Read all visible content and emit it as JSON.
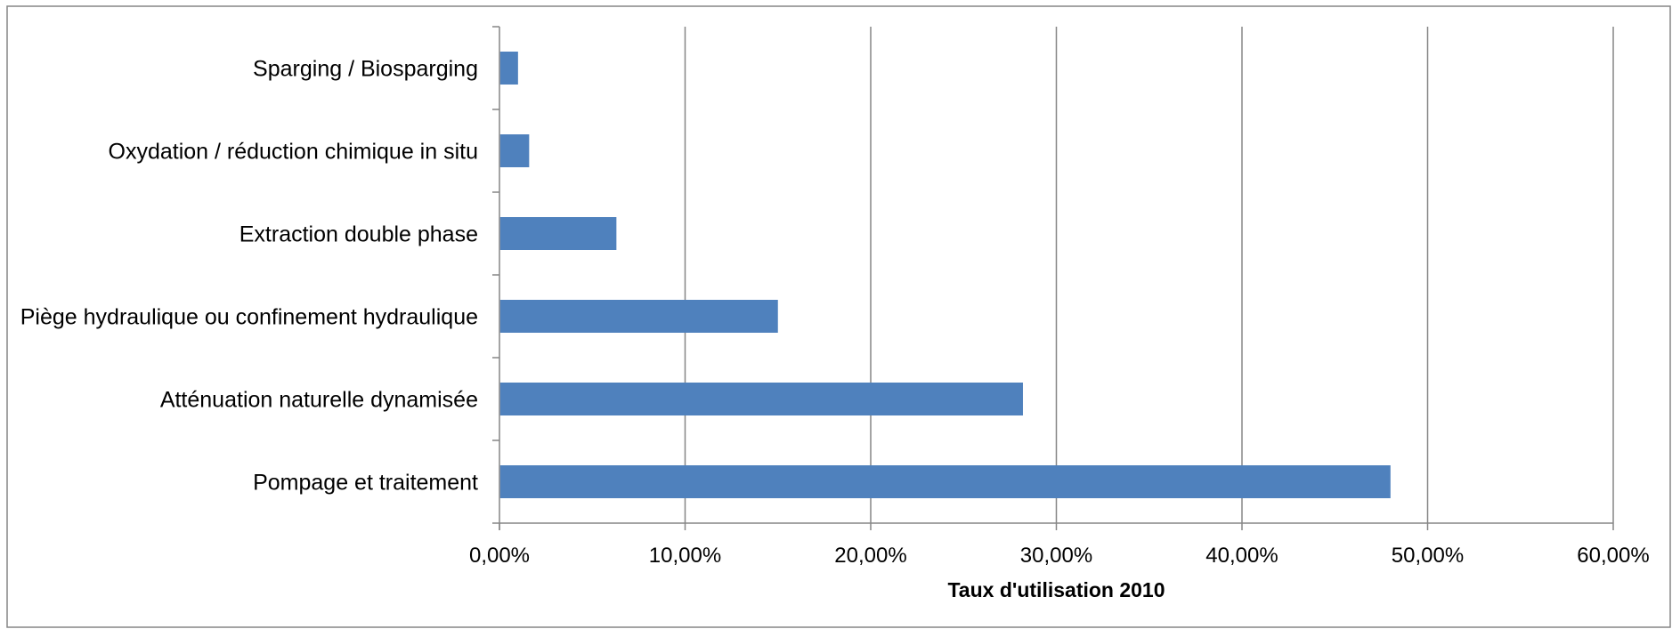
{
  "chart_data": {
    "type": "bar",
    "orientation": "horizontal",
    "categories": [
      "Sparging / Biosparging",
      "Oxydation / réduction chimique in situ",
      "Extraction double phase",
      "Piège hydraulique ou confinement hydraulique",
      "Atténuation naturelle dynamisée",
      "Pompage et traitement"
    ],
    "values": [
      0.01,
      0.016,
      0.063,
      0.15,
      0.282,
      0.48
    ],
    "xlabel": "Taux d'utilisation 2010",
    "ylabel": "",
    "xlim": [
      0,
      0.6
    ],
    "x_ticks": [
      0,
      0.1,
      0.2,
      0.3,
      0.4,
      0.5,
      0.6
    ],
    "x_tick_labels": [
      "0,00%",
      "10,00%",
      "20,00%",
      "30,00%",
      "40,00%",
      "50,00%",
      "60,00%"
    ],
    "grid": "vertical major gridlines",
    "legend": "none",
    "colors": {
      "bar": "#4F81BD",
      "gridline": "#868686",
      "axis": "#868686",
      "frame": "#868686"
    }
  }
}
